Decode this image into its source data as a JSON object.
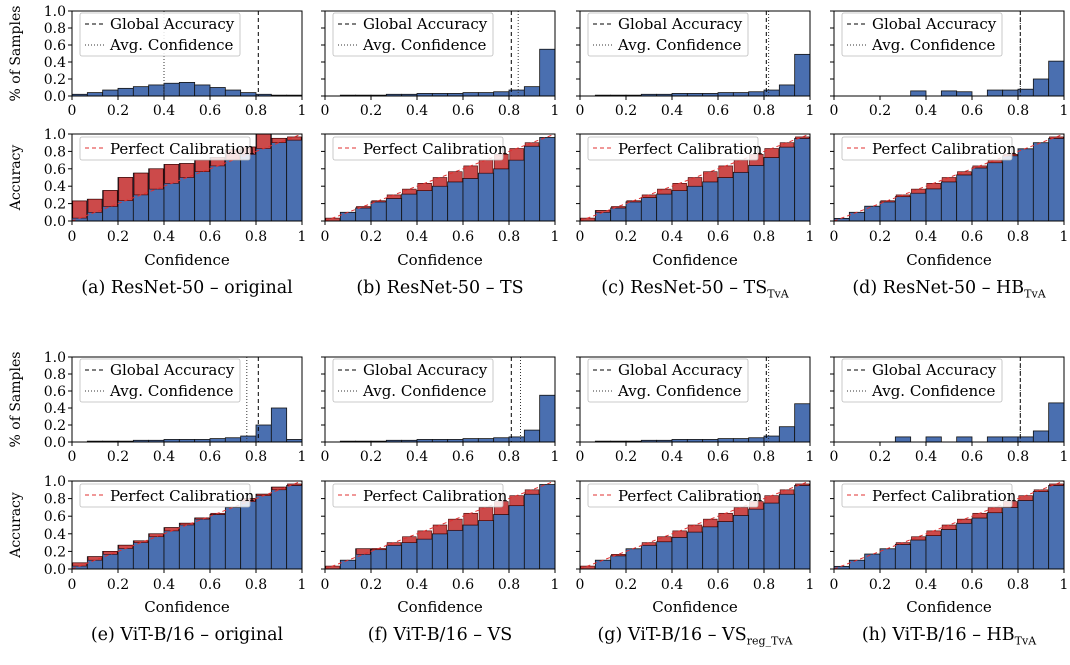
{
  "panel_labels": {
    "hist_ylabel": "% of Samples",
    "rel_ylabel": "Accuracy",
    "xlabel": "Confidence",
    "legend_global": "Global Accuracy",
    "legend_conf": "Avg. Confidence",
    "legend_perfect": "Perfect Calibration"
  },
  "captions": [
    {
      "main": "(a) ResNet-50 – original",
      "sub": ""
    },
    {
      "main": "(b) ResNet-50 – TS",
      "sub": ""
    },
    {
      "main": "(c) ResNet-50 – TS",
      "sub": "TvA"
    },
    {
      "main": "(d) ResNet-50 – HB",
      "sub": "TvA"
    },
    {
      "main": "(e) ViT-B/16 – original",
      "sub": ""
    },
    {
      "main": "(f) ViT-B/16 – VS",
      "sub": ""
    },
    {
      "main": "(g) ViT-B/16 – VS",
      "sub": "reg_TvA"
    },
    {
      "main": "(h) ViT-B/16 – HB",
      "sub": "TvA"
    }
  ],
  "colors": {
    "bar": "#4a6fb0",
    "gap": "#cc4a4a",
    "perfect": "#e03030"
  },
  "chart_data": [
    {
      "type": "bar",
      "panel": "a",
      "ylim": [
        0,
        1
      ],
      "xlim": [
        0,
        1
      ],
      "bins": 15,
      "global_accuracy": 0.81,
      "avg_confidence": 0.4,
      "hist": [
        0.02,
        0.04,
        0.07,
        0.09,
        0.11,
        0.13,
        0.15,
        0.16,
        0.13,
        0.1,
        0.07,
        0.04,
        0.02,
        0.01,
        0.01
      ],
      "accuracy": [
        0.23,
        0.25,
        0.35,
        0.5,
        0.55,
        0.6,
        0.65,
        0.66,
        0.7,
        0.73,
        0.82,
        0.85,
        1.0,
        0.95,
        0.93
      ]
    },
    {
      "type": "bar",
      "panel": "b",
      "ylim": [
        0,
        1
      ],
      "xlim": [
        0,
        1
      ],
      "bins": 15,
      "global_accuracy": 0.81,
      "avg_confidence": 0.84,
      "hist": [
        0.0,
        0.01,
        0.01,
        0.01,
        0.02,
        0.02,
        0.03,
        0.03,
        0.03,
        0.04,
        0.04,
        0.05,
        0.07,
        0.11,
        0.55
      ],
      "accuracy": [
        0.0,
        0.1,
        0.15,
        0.22,
        0.26,
        0.31,
        0.35,
        0.4,
        0.45,
        0.49,
        0.55,
        0.6,
        0.7,
        0.86,
        0.96
      ]
    },
    {
      "type": "bar",
      "panel": "c",
      "ylim": [
        0,
        1
      ],
      "xlim": [
        0,
        1
      ],
      "bins": 15,
      "global_accuracy": 0.81,
      "avg_confidence": 0.82,
      "hist": [
        0.0,
        0.01,
        0.01,
        0.01,
        0.02,
        0.02,
        0.03,
        0.03,
        0.03,
        0.04,
        0.04,
        0.05,
        0.07,
        0.13,
        0.49
      ],
      "accuracy": [
        0.0,
        0.12,
        0.15,
        0.22,
        0.27,
        0.31,
        0.35,
        0.4,
        0.45,
        0.5,
        0.56,
        0.64,
        0.73,
        0.85,
        0.95
      ]
    },
    {
      "type": "bar",
      "panel": "d",
      "ylim": [
        0,
        1
      ],
      "xlim": [
        0,
        1
      ],
      "bins": 15,
      "global_accuracy": 0.81,
      "avg_confidence": 0.81,
      "hist": [
        0.0,
        0.0,
        0.0,
        0.0,
        0.0,
        0.06,
        0.0,
        0.06,
        0.05,
        0.0,
        0.07,
        0.07,
        0.08,
        0.2,
        0.41
      ],
      "accuracy": [
        0.03,
        0.1,
        0.17,
        0.22,
        0.28,
        0.32,
        0.37,
        0.45,
        0.53,
        0.61,
        0.67,
        0.75,
        0.83,
        0.9,
        0.95
      ]
    },
    {
      "type": "bar",
      "panel": "e",
      "ylim": [
        0,
        1
      ],
      "xlim": [
        0,
        1
      ],
      "bins": 15,
      "global_accuracy": 0.81,
      "avg_confidence": 0.76,
      "hist": [
        0.0,
        0.01,
        0.01,
        0.01,
        0.02,
        0.02,
        0.03,
        0.03,
        0.03,
        0.04,
        0.05,
        0.07,
        0.2,
        0.4,
        0.03
      ],
      "accuracy": [
        0.07,
        0.14,
        0.2,
        0.27,
        0.32,
        0.4,
        0.47,
        0.52,
        0.58,
        0.62,
        0.7,
        0.8,
        0.85,
        0.93,
        0.95
      ]
    },
    {
      "type": "bar",
      "panel": "f",
      "ylim": [
        0,
        1
      ],
      "xlim": [
        0,
        1
      ],
      "bins": 15,
      "global_accuracy": 0.81,
      "avg_confidence": 0.85,
      "hist": [
        0.0,
        0.01,
        0.01,
        0.01,
        0.02,
        0.02,
        0.03,
        0.03,
        0.03,
        0.04,
        0.04,
        0.05,
        0.06,
        0.14,
        0.55
      ],
      "accuracy": [
        0.0,
        0.1,
        0.23,
        0.22,
        0.27,
        0.3,
        0.34,
        0.4,
        0.44,
        0.5,
        0.55,
        0.62,
        0.72,
        0.85,
        0.96
      ]
    },
    {
      "type": "bar",
      "panel": "g",
      "ylim": [
        0,
        1
      ],
      "xlim": [
        0,
        1
      ],
      "bins": 15,
      "global_accuracy": 0.81,
      "avg_confidence": 0.82,
      "hist": [
        0.0,
        0.01,
        0.01,
        0.01,
        0.02,
        0.02,
        0.03,
        0.03,
        0.03,
        0.04,
        0.04,
        0.05,
        0.07,
        0.18,
        0.45
      ],
      "accuracy": [
        0.0,
        0.1,
        0.15,
        0.23,
        0.27,
        0.31,
        0.36,
        0.42,
        0.48,
        0.54,
        0.61,
        0.68,
        0.75,
        0.85,
        0.95
      ]
    },
    {
      "type": "bar",
      "panel": "h",
      "ylim": [
        0,
        1
      ],
      "xlim": [
        0,
        1
      ],
      "bins": 15,
      "global_accuracy": 0.81,
      "avg_confidence": 0.81,
      "hist": [
        0.0,
        0.0,
        0.0,
        0.0,
        0.06,
        0.0,
        0.06,
        0.0,
        0.06,
        0.0,
        0.06,
        0.06,
        0.06,
        0.13,
        0.46
      ],
      "accuracy": [
        0.03,
        0.1,
        0.17,
        0.23,
        0.28,
        0.33,
        0.38,
        0.45,
        0.52,
        0.58,
        0.64,
        0.7,
        0.78,
        0.88,
        0.95
      ]
    }
  ]
}
